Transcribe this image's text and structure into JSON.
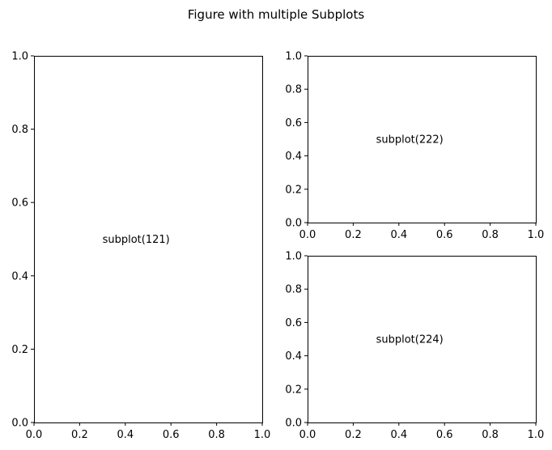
{
  "figure_title": "Figure with multiple Subplots",
  "chart_data": [
    {
      "type": "scatter",
      "subplot": "121",
      "text_annotation": "subplot(121)",
      "annotation_position": [
        0.3,
        0.5
      ],
      "xlim": [
        0,
        1
      ],
      "ylim": [
        0,
        1
      ],
      "xticks": [
        "0.0",
        "0.2",
        "0.4",
        "0.6",
        "0.8",
        "1.0"
      ],
      "yticks": [
        "0.0",
        "0.2",
        "0.4",
        "0.6",
        "0.8",
        "1.0"
      ],
      "series": [],
      "grid": false
    },
    {
      "type": "scatter",
      "subplot": "222",
      "text_annotation": "subplot(222)",
      "annotation_position": [
        0.3,
        0.5
      ],
      "xlim": [
        0,
        1
      ],
      "ylim": [
        0,
        1
      ],
      "xticks": [
        "0.0",
        "0.2",
        "0.4",
        "0.6",
        "0.8",
        "1.0"
      ],
      "yticks": [
        "0.0",
        "0.2",
        "0.4",
        "0.6",
        "0.8",
        "1.0"
      ],
      "series": [],
      "grid": false
    },
    {
      "type": "scatter",
      "subplot": "224",
      "text_annotation": "subplot(224)",
      "annotation_position": [
        0.3,
        0.5
      ],
      "xlim": [
        0,
        1
      ],
      "ylim": [
        0,
        1
      ],
      "xticks": [
        "0.0",
        "0.2",
        "0.4",
        "0.6",
        "0.8",
        "1.0"
      ],
      "yticks": [
        "0.0",
        "0.2",
        "0.4",
        "0.6",
        "0.8",
        "1.0"
      ],
      "series": [],
      "grid": false
    }
  ]
}
